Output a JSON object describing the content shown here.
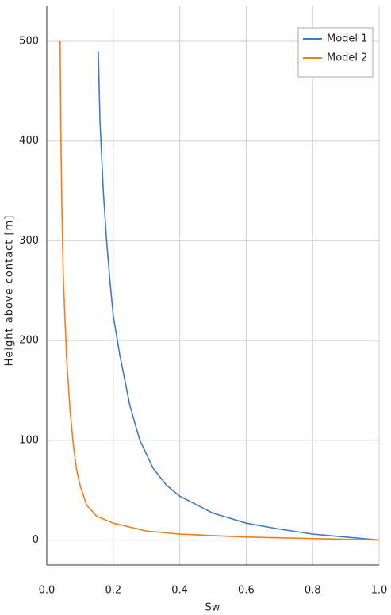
{
  "chart_data": {
    "type": "line",
    "xlabel": "Sw",
    "ylabel": "Height above contact [m]",
    "xlim": [
      0,
      1
    ],
    "xticks": [
      {
        "value": 0,
        "label": "0.0"
      },
      {
        "value": 0.2,
        "label": "0.2"
      },
      {
        "value": 0.4,
        "label": "0.4"
      },
      {
        "value": 0.6,
        "label": "0.6"
      },
      {
        "value": 0.8,
        "label": "0.8"
      },
      {
        "value": 1,
        "label": "1.0"
      }
    ],
    "ylim": [
      -25,
      535
    ],
    "yticks": [
      0,
      100,
      200,
      300,
      400,
      500
    ],
    "grid": true,
    "legend": "upper right",
    "series": [
      {
        "name": "Model 1",
        "color": "#3d7cc4",
        "x": [
          0.155,
          0.16,
          0.17,
          0.18,
          0.19,
          0.2,
          0.22,
          0.25,
          0.28,
          0.32,
          0.36,
          0.4,
          0.5,
          0.6,
          0.7,
          0.8,
          0.9,
          1.0
        ],
        "values": [
          490,
          420,
          350,
          300,
          260,
          225,
          185,
          135,
          100,
          72,
          55,
          44,
          27,
          17,
          11,
          6,
          3,
          0
        ]
      },
      {
        "name": "Model 2",
        "color": "#f07f1c",
        "x": [
          0.04,
          0.042,
          0.045,
          0.05,
          0.06,
          0.07,
          0.08,
          0.09,
          0.1,
          0.12,
          0.15,
          0.2,
          0.3,
          0.4,
          0.6,
          0.8,
          1.0
        ],
        "values": [
          500,
          420,
          340,
          260,
          180,
          130,
          95,
          70,
          55,
          35,
          24,
          17,
          9,
          6,
          3,
          1.5,
          0
        ]
      }
    ]
  }
}
